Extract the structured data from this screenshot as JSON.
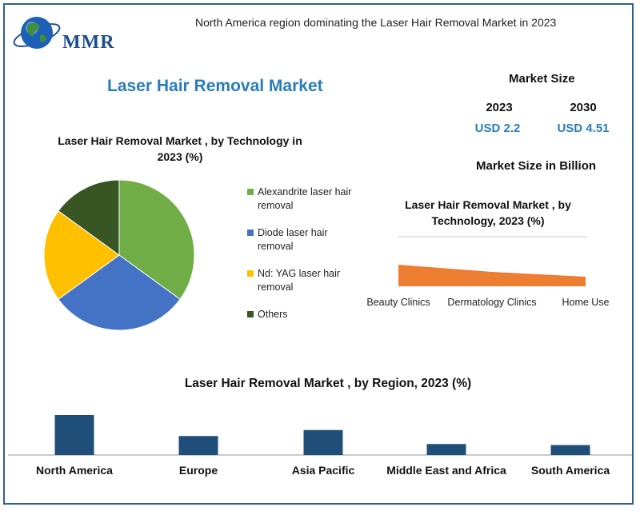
{
  "header": {
    "logo_text": "MMR",
    "note": "North America region dominating the Laser Hair Removal Market in 2023"
  },
  "main_title": "Laser Hair Removal Market",
  "market_size": {
    "title": "Market Size",
    "years": [
      {
        "year": "2023",
        "value": "USD 2.2"
      },
      {
        "year": "2030",
        "value": "USD 4.51"
      }
    ],
    "unit_label": "Market Size in Billion"
  },
  "colors": {
    "alexandrite": "#70ad47",
    "diode": "#4472c4",
    "ndyag": "#ffc000",
    "others": "#375623",
    "area": "#ed7d31",
    "region_bar": "#1f4e79",
    "title_blue": "#2a7db8"
  },
  "chart_data": [
    {
      "type": "pie",
      "title": "Laser Hair Removal Market , by Technology in 2023 (%)",
      "legend_position": "right",
      "series": [
        {
          "name": "Alexandrite laser hair removal",
          "value": 35
        },
        {
          "name": "Diode laser hair removal",
          "value": 30
        },
        {
          "name": "Nd: YAG laser hair removal",
          "value": 20
        },
        {
          "name": "Others",
          "value": 15
        }
      ]
    },
    {
      "type": "area",
      "title": "Laser Hair Removal Market , by Technology, 2023 (%)",
      "categories": [
        "Beauty Clinics",
        "Dermatology Clinics",
        "Home Use"
      ],
      "values": [
        45,
        30,
        20
      ],
      "ylim": [
        0,
        100
      ],
      "grid": false
    },
    {
      "type": "bar",
      "title": "Laser Hair Removal Market , by Region, 2023 (%)",
      "categories": [
        "North America",
        "Europe",
        "Asia Pacific",
        "Middle East and Africa",
        "South America"
      ],
      "values": [
        40,
        19,
        25,
        11,
        10
      ],
      "ylim": [
        0,
        40
      ],
      "grid": false
    }
  ]
}
